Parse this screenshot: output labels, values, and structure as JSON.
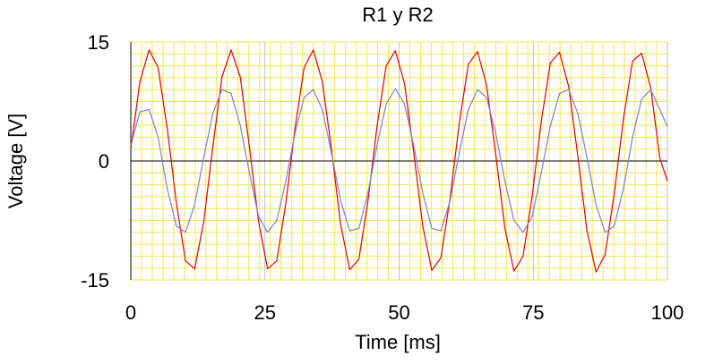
{
  "chart_data": {
    "type": "line",
    "title": "R1 y R2",
    "xlabel": "Time [ms]",
    "ylabel": "Voltage [V]",
    "xlim": [
      0,
      100
    ],
    "ylim": [
      -15,
      15
    ],
    "x_ticks": [
      "0",
      "25",
      "50",
      "75",
      "100"
    ],
    "y_ticks": [
      "15",
      "0",
      "-15"
    ],
    "x_tick_values": [
      0,
      25,
      50,
      75,
      100
    ],
    "y_tick_values": [
      15,
      0,
      -15
    ],
    "grid": true,
    "grid_minor_step_x": 2,
    "grid_minor_step_y": 1.5,
    "grid_major_step_x": 25,
    "grid_color": "#f5e64b",
    "grid_major_color": "#bfbfbf",
    "zero_line_color": "#000000",
    "background": "#ffffff",
    "series": [
      {
        "color": "#e00000",
        "x": [
          0,
          1.7,
          3.4,
          5.1,
          6.8,
          8.5,
          10.2,
          11.9,
          13.6,
          15.3,
          17.0,
          18.7,
          20.4,
          22.1,
          23.8,
          25.5,
          27.2,
          28.9,
          30.6,
          32.3,
          34.0,
          35.7,
          37.4,
          39.1,
          40.8,
          42.5,
          44.2,
          45.9,
          47.6,
          49.3,
          51.0,
          52.7,
          54.4,
          56.1,
          57.8,
          59.5,
          61.2,
          62.9,
          64.6,
          66.3,
          68.0,
          69.7,
          71.4,
          73.1,
          74.8,
          76.5,
          78.2,
          79.9,
          81.6,
          83.3,
          85.0,
          86.7,
          88.4,
          90.1,
          91.8,
          93.5,
          95.2,
          96.9,
          98.6,
          100
        ],
        "values": [
          1.5,
          10.0,
          14.0,
          11.8,
          4.1,
          -5.3,
          -12.6,
          -13.6,
          -7.6,
          1.8,
          10.6,
          14.0,
          10.6,
          1.8,
          -7.6,
          -13.6,
          -12.6,
          -5.3,
          4.1,
          11.8,
          14.0,
          10.0,
          1.5,
          -8.0,
          -13.7,
          -12.4,
          -5.0,
          4.4,
          12.0,
          13.9,
          9.8,
          1.2,
          -8.2,
          -13.8,
          -12.2,
          -4.7,
          4.7,
          12.2,
          13.8,
          9.6,
          0.9,
          -8.4,
          -13.9,
          -12.0,
          -4.4,
          5.0,
          12.4,
          13.7,
          9.4,
          0.6,
          -8.7,
          -14.0,
          -11.8,
          -4.1,
          5.3,
          12.6,
          13.6,
          9.2,
          0.3,
          -2.5
        ]
      },
      {
        "color": "#7f7fd6",
        "x": [
          0,
          1.7,
          3.4,
          5.1,
          6.8,
          8.5,
          10.2,
          11.9,
          13.6,
          15.3,
          17.0,
          18.7,
          20.4,
          22.1,
          23.8,
          25.5,
          27.2,
          28.9,
          30.6,
          32.3,
          34.0,
          35.7,
          37.4,
          39.1,
          40.8,
          42.5,
          44.2,
          45.9,
          47.6,
          49.3,
          51.0,
          52.7,
          54.4,
          56.1,
          57.8,
          59.5,
          61.2,
          62.9,
          64.6,
          66.3,
          68.0,
          69.7,
          71.4,
          73.1,
          74.8,
          76.5,
          78.2,
          79.9,
          81.6,
          83.3,
          85.0,
          86.7,
          88.4,
          90.1,
          91.8,
          93.5,
          95.2,
          96.9,
          98.6,
          100
        ],
        "values": [
          2.0,
          6.2,
          6.5,
          3.0,
          -3.5,
          -8.2,
          -9.0,
          -5.5,
          0.5,
          6.0,
          9.0,
          8.5,
          4.5,
          -1.5,
          -7.0,
          -9.0,
          -7.5,
          -2.5,
          3.5,
          8.0,
          9.0,
          6.5,
          1.0,
          -5.0,
          -8.8,
          -8.5,
          -4.0,
          2.0,
          7.2,
          9.1,
          7.2,
          2.0,
          -4.0,
          -8.5,
          -8.8,
          -5.0,
          1.0,
          6.5,
          9.0,
          8.0,
          3.5,
          -2.5,
          -7.5,
          -9.0,
          -7.0,
          -1.5,
          4.5,
          8.5,
          9.0,
          6.0,
          0.5,
          -5.5,
          -9.0,
          -8.2,
          -3.5,
          3.0,
          7.8,
          9.0,
          6.5,
          4.3
        ]
      }
    ]
  }
}
